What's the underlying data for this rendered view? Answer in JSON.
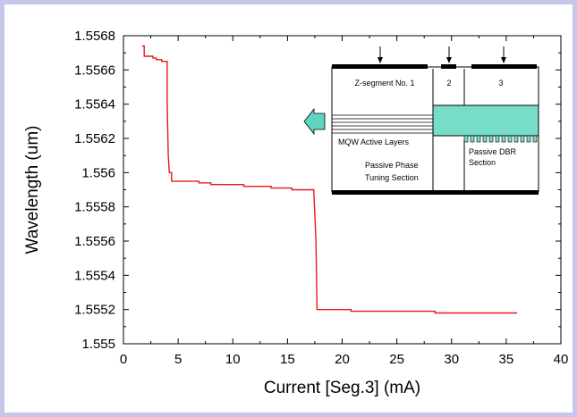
{
  "chart_data": {
    "type": "line",
    "title": "",
    "xlabel": "Current [Seg.3] (mA)",
    "ylabel": "Wavelength (um)",
    "xlim": [
      0,
      40
    ],
    "ylim": [
      1.555,
      1.5568
    ],
    "xticks": [
      "0",
      "5",
      "10",
      "15",
      "20",
      "25",
      "30",
      "35",
      "40"
    ],
    "yticks": [
      "1.555",
      "1.5552",
      "1.5554",
      "1.5556",
      "1.5558",
      "1.556",
      "1.5562",
      "1.5564",
      "1.5566",
      "1.5568"
    ],
    "grid": false,
    "series_color": "#e8171c",
    "series": [
      {
        "x": [
          1.7,
          1.9,
          1.9,
          2.7,
          2.7,
          3.0,
          3.0,
          3.5,
          3.5,
          4.0,
          4.0,
          4.1,
          4.2,
          4.4,
          4.4,
          6.9,
          6.9,
          8.0,
          8.0,
          11.0,
          11.0,
          13.5,
          13.5,
          15.4,
          15.4,
          17.4,
          17.6,
          17.7,
          17.7,
          20.8,
          20.8,
          28.5,
          28.5,
          36.0
        ],
        "y": [
          1.55674,
          1.55674,
          1.55668,
          1.55668,
          1.55667,
          1.55667,
          1.55666,
          1.55666,
          1.55665,
          1.55665,
          1.5564,
          1.5561,
          1.556,
          1.556,
          1.55595,
          1.55595,
          1.55594,
          1.55594,
          1.55593,
          1.55593,
          1.55592,
          1.55592,
          1.55591,
          1.55591,
          1.5559,
          1.5559,
          1.5556,
          1.5552,
          1.5552,
          1.5552,
          1.55519,
          1.55519,
          1.55518,
          1.55518
        ]
      }
    ],
    "inset": {
      "segment_labels": [
        "Z-segment No. 1",
        "2",
        "3"
      ],
      "layer_label": "MQW Active Layers",
      "phase_label": "Passive Phase\nTuning Section",
      "dbr_label": "Passive DBR\nSection",
      "waveguide_color": "#77dcc8",
      "arrow_color": "#5fd4c0"
    }
  }
}
